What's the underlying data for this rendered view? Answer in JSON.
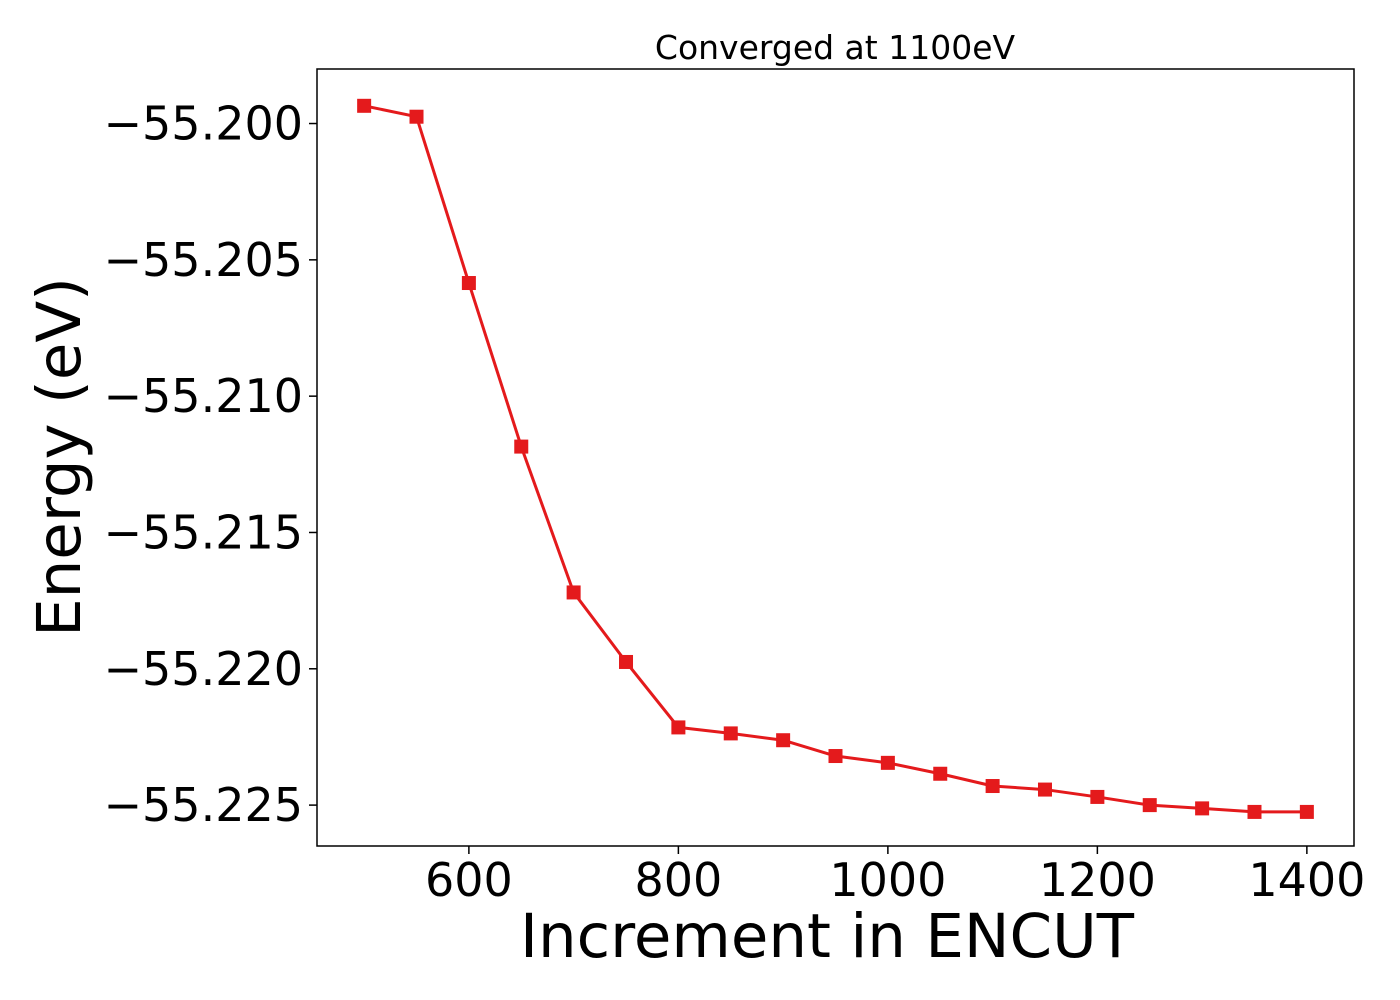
{
  "chart_data": {
    "type": "line",
    "title": "Converged at 1100eV",
    "xlabel": "Increment in ENCUT",
    "ylabel": "Energy (eV)",
    "xlim": [
      455,
      1445
    ],
    "ylim": [
      -55.2265,
      -55.198
    ],
    "x_ticks": [
      600,
      800,
      1000,
      1200,
      1400
    ],
    "x_tick_labels": [
      "600",
      "800",
      "1000",
      "1200",
      "1400"
    ],
    "y_ticks": [
      -55.2,
      -55.205,
      -55.21,
      -55.215,
      -55.22,
      -55.225
    ],
    "y_tick_labels": [
      "−55.200",
      "−55.205",
      "−55.210",
      "−55.215",
      "−55.220",
      "−55.225"
    ],
    "grid": false,
    "series": [
      {
        "color": "#e41a1c",
        "marker": "square",
        "x": [
          500,
          550,
          600,
          650,
          700,
          750,
          800,
          850,
          900,
          950,
          1000,
          1050,
          1100,
          1150,
          1200,
          1250,
          1300,
          1350,
          1400
        ],
        "y": [
          -55.19935,
          -55.19975,
          -55.20585,
          -55.21185,
          -55.2172,
          -55.21975,
          -55.22215,
          -55.22237,
          -55.22262,
          -55.2232,
          -55.22345,
          -55.22385,
          -55.2243,
          -55.22443,
          -55.2247,
          -55.225,
          -55.22512,
          -55.22525,
          -55.22525
        ]
      }
    ]
  }
}
